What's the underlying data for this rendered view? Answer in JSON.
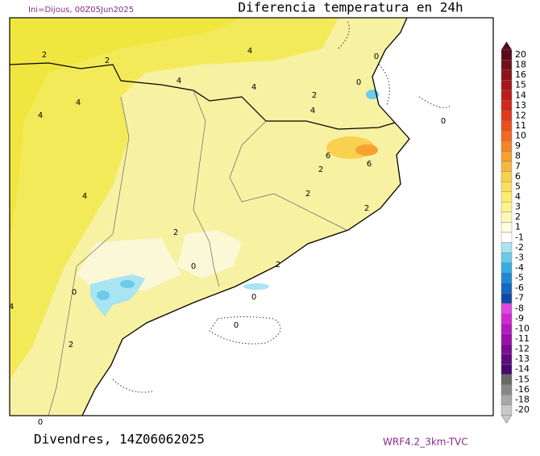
{
  "header": {
    "run": "Ini=Dijous, 00Z05Jun2025",
    "title": "Diferencia temperatura en 24h"
  },
  "footer": {
    "valid": "Divendres, 14Z06062025",
    "model": "WRF4.2_3km-TVC"
  },
  "axis_label": 0,
  "contour_labels": [
    2,
    2,
    4,
    4,
    4,
    4,
    4,
    2,
    4,
    0,
    0,
    0,
    6,
    6,
    2,
    2,
    4,
    2,
    2,
    0,
    2,
    0,
    0,
    0,
    2,
    4
  ],
  "legend": {
    "levels": [
      20,
      18,
      16,
      15,
      14,
      13,
      12,
      11,
      10,
      9,
      8,
      7,
      6,
      5,
      4,
      3,
      2,
      1,
      -1,
      -2,
      -3,
      -4,
      -5,
      -6,
      -7,
      -8,
      -9,
      -10,
      -11,
      -12,
      -13,
      -14,
      -15,
      -16,
      -18,
      -20
    ],
    "colors": [
      "#5a0a18",
      "#72101a",
      "#8c1418",
      "#a4181a",
      "#bc1e1e",
      "#d0281e",
      "#e03a1e",
      "#ea5020",
      "#f06a22",
      "#f48428",
      "#f6a030",
      "#f8b840",
      "#fad050",
      "#fbe060",
      "#fcec70",
      "#fdf490",
      "#fef8b8",
      "#fffde0",
      "#ffffff",
      "#a8e4f2",
      "#6ccaea",
      "#38ace0",
      "#2088d4",
      "#1468c4",
      "#1048a8",
      "#e048e0",
      "#d028d0",
      "#b818c0",
      "#9a10aa",
      "#7c0a94",
      "#600880",
      "#480870",
      "#686868",
      "#888888",
      "#a8a8a8",
      "#c8c8c8"
    ]
  }
}
